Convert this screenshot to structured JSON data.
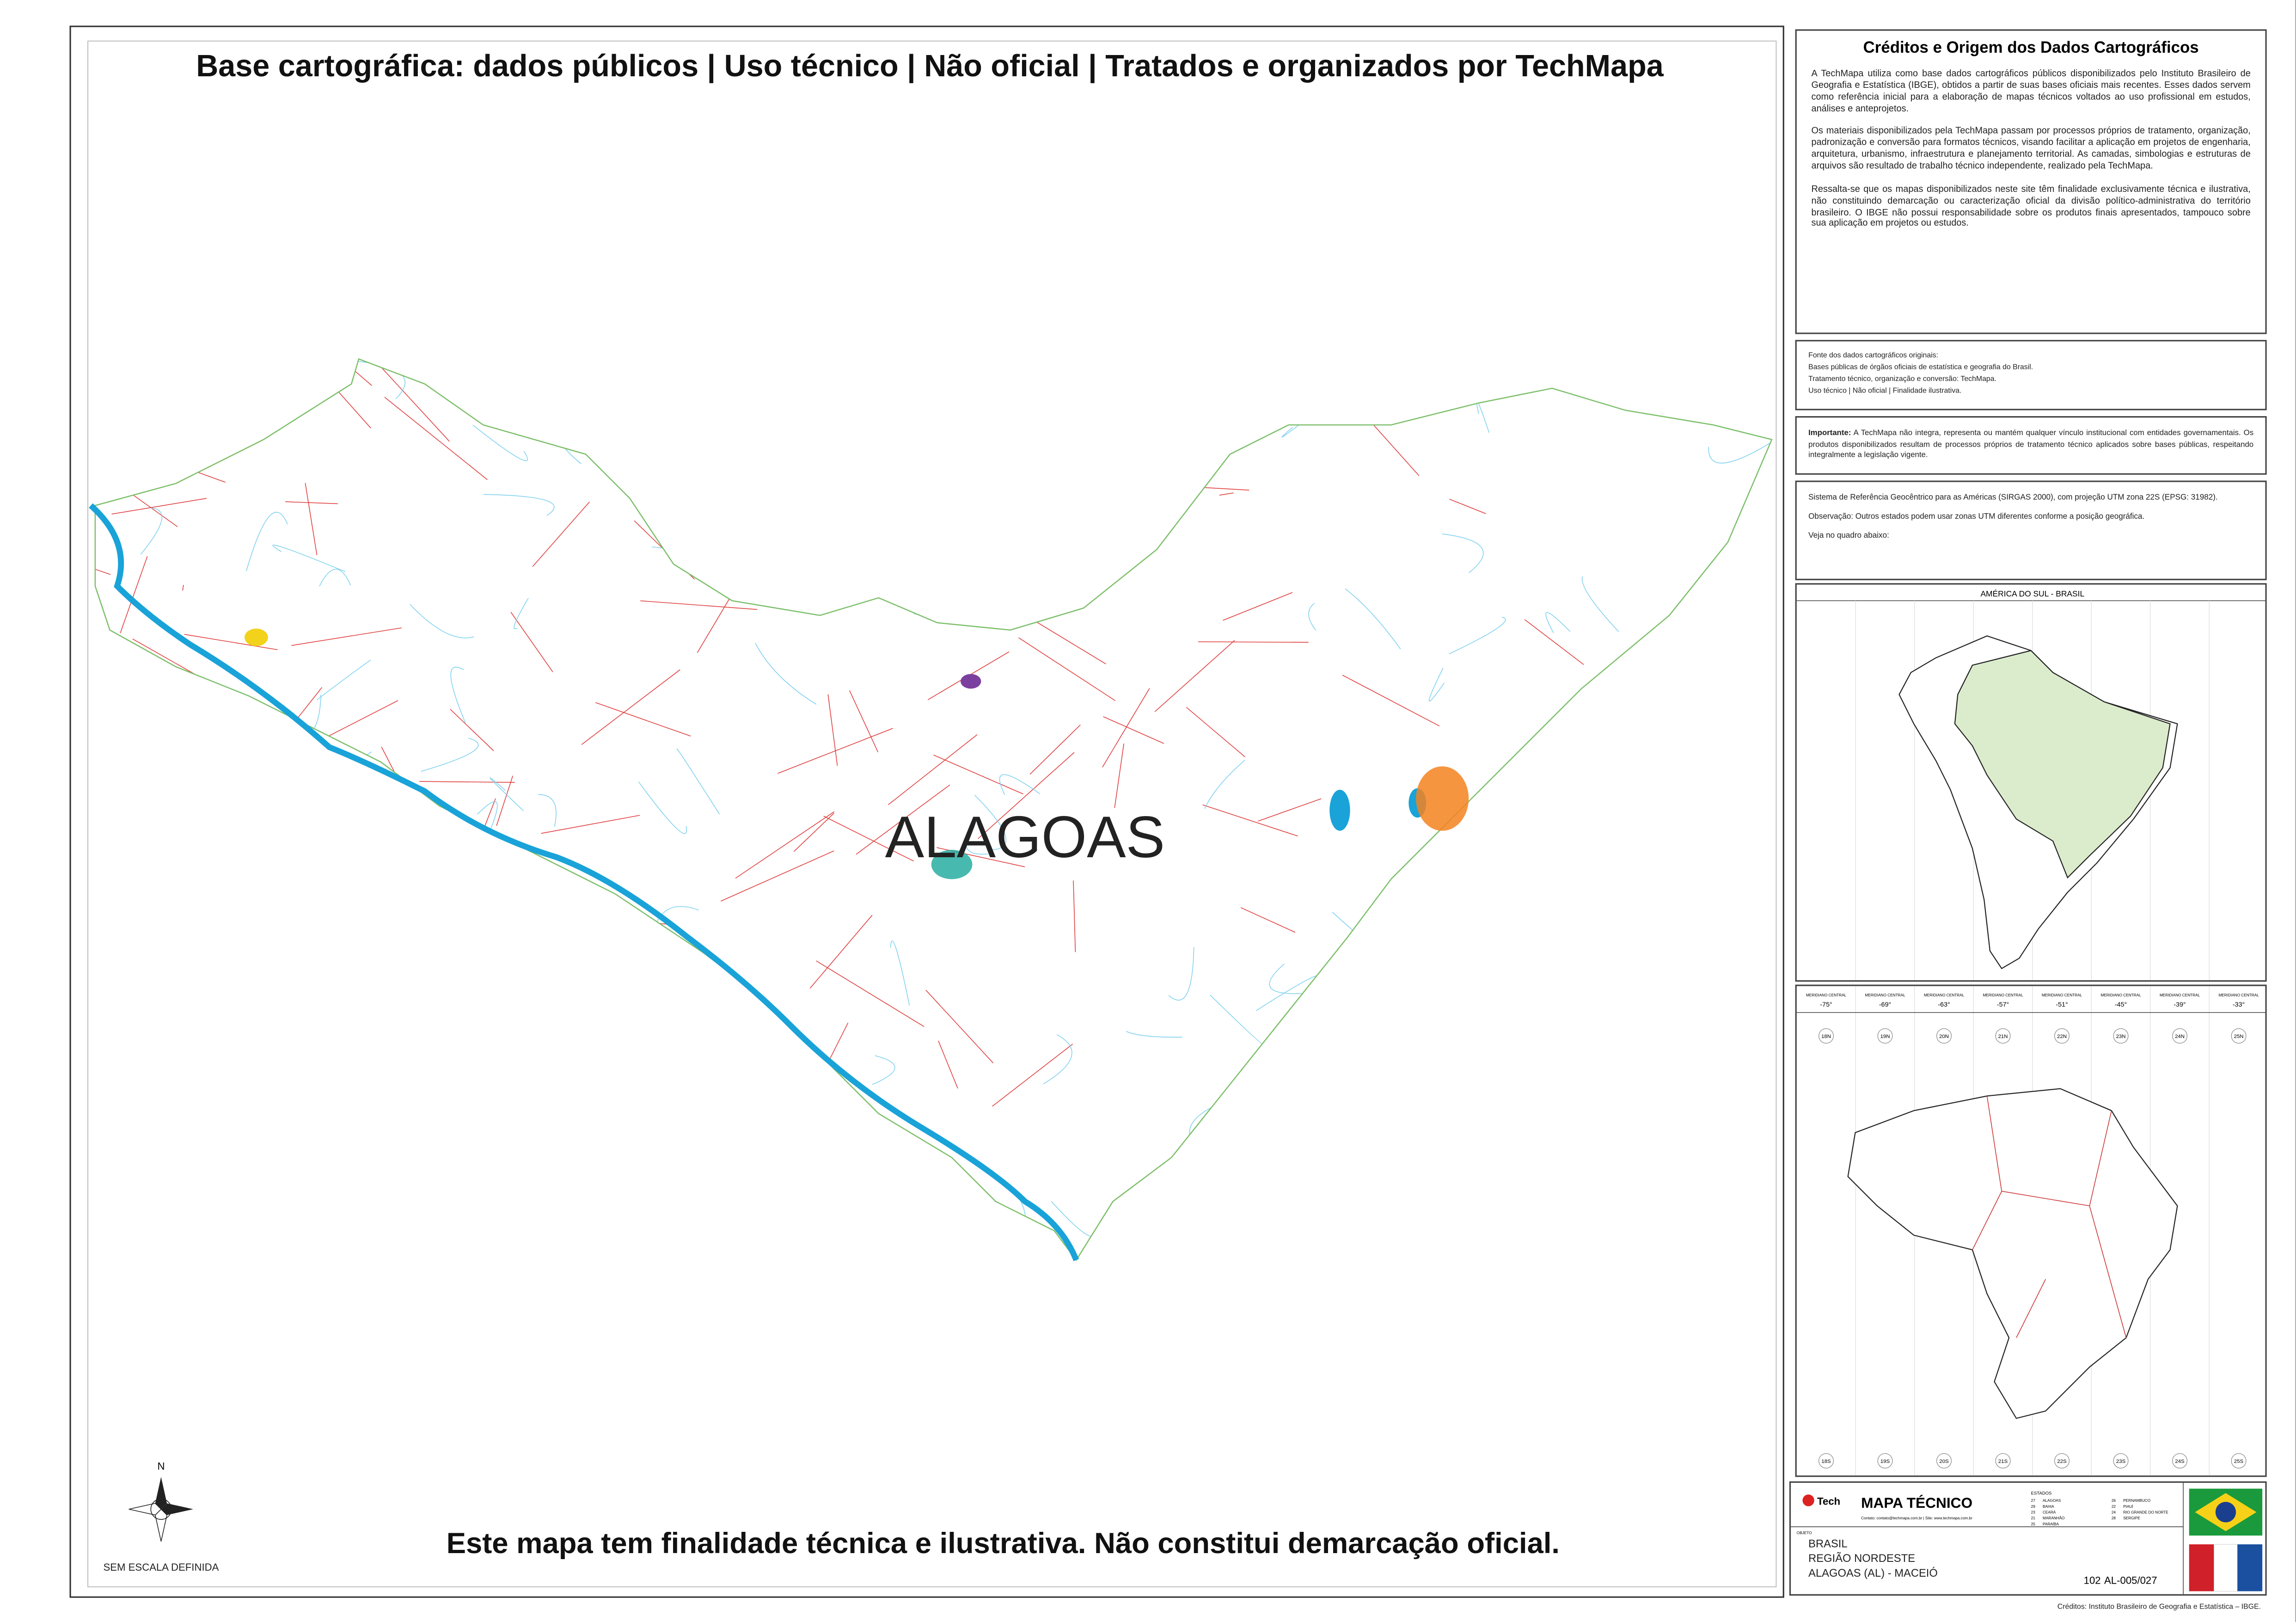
{
  "header": {
    "title": "Base cartográfica: dados públicos | Uso técnico | Não oficial | Tratados e organizados por TechMapa"
  },
  "map": {
    "label": "ALAGOAS",
    "north": "N",
    "scale_note": "SEM ESCALA DEFINIDA"
  },
  "footer": {
    "disclaimer": "Este mapa tem finalidade técnica e ilustrativa. Não constitui demarcação oficial.",
    "credit": "Créditos: Instituto Brasileiro de Geografia e Estatística – IBGE."
  },
  "credits": {
    "title": "Créditos e Origem dos Dados Cartográficos",
    "paragraphs": [
      "A TechMapa utiliza como base dados cartográficos públicos disponibilizados pelo Instituto Brasileiro de Geografia e Estatística (IBGE), obtidos a partir de suas bases oficiais mais recentes. Esses dados servem como referência inicial para a elaboração de mapas técnicos voltados ao uso profissional em estudos, análises e anteprojetos.",
      "Os materiais disponibilizados pela TechMapa passam por processos próprios de tratamento, organização, padronização e conversão para formatos técnicos, visando facilitar a aplicação em projetos de engenharia, arquitetura, urbanismo, infraestrutura e planejamento territorial. As camadas, simbologias e estruturas de arquivos são resultado de trabalho técnico independente, realizado pela TechMapa.",
      "Ressalta-se que os mapas disponibilizados neste site têm finalidade exclusivamente técnica e ilustrativa, não constituindo demarcação ou caracterização oficial da divisão político-administrativa do território brasileiro. O IBGE não possui responsabilidade sobre os produtos finais apresentados, tampouco sobre sua aplicação em projetos ou estudos."
    ]
  },
  "sources": {
    "lines": [
      "Fonte dos dados cartográficos originais:",
      "Bases públicas de órgãos oficiais de estatística e geografia do Brasil.",
      "Tratamento técnico, organização e conversão: TechMapa.",
      "Uso técnico | Não oficial | Finalidade ilustrativa."
    ]
  },
  "important": {
    "label": "Importante:",
    "text": "A TechMapa não integra, representa ou mantém qualquer vínculo institucional com entidades governamentais. Os produtos disponibilizados resultam de processos próprios de tratamento técnico aplicados sobre bases públicas, respeitando integralmente a legislação vigente."
  },
  "reference": {
    "paragraphs": [
      "Sistema de Referência Geocêntrico para as Américas (SIRGAS 2000), com projeção UTM zona 22S (EPSG: 31982).",
      "Observação: Outros estados podem usar zonas UTM diferentes conforme a posição geográfica.",
      "Veja no quadro abaixo:"
    ]
  },
  "inset": {
    "title": "AMÉRICA DO SUL - BRASIL"
  },
  "utm": {
    "meridian_label": "MERIDIANO CENTRAL",
    "meridians": [
      "-75°",
      "-69°",
      "-63°",
      "-57°",
      "-51°",
      "-45°",
      "-39°",
      "-33°"
    ],
    "north_zones": [
      "18N",
      "19N",
      "20N",
      "21N",
      "22N",
      "23N",
      "24N",
      "25N"
    ],
    "south_zones": [
      "18S",
      "19S",
      "20S",
      "21S",
      "22S",
      "23S",
      "24S",
      "25S"
    ]
  },
  "title_block": {
    "logo": "Tech",
    "title": "MAPA TÉCNICO",
    "contact": "Contato: contato@techmapa.com.br | Site: www.techmapa.com.br",
    "states_label": "ESTADOS",
    "states": [
      [
        "27",
        "ALAGOAS"
      ],
      [
        "29",
        "BAHIA"
      ],
      [
        "23",
        "CEARÁ"
      ],
      [
        "21",
        "MARANHÃO"
      ],
      [
        "25",
        "PARAÍBA"
      ],
      [
        "26",
        "PERNAMBUCO"
      ],
      [
        "22",
        "PIAUÍ"
      ],
      [
        "24",
        "RIO GRANDE DO NORTE"
      ],
      [
        "28",
        "SERGIPE"
      ]
    ],
    "object_label": "OBJETO",
    "location": [
      "BRASIL",
      "REGIÃO NORDESTE",
      "ALAGOAS (AL) - MACEIÓ"
    ],
    "number": "102",
    "code": "AL-005/027"
  }
}
